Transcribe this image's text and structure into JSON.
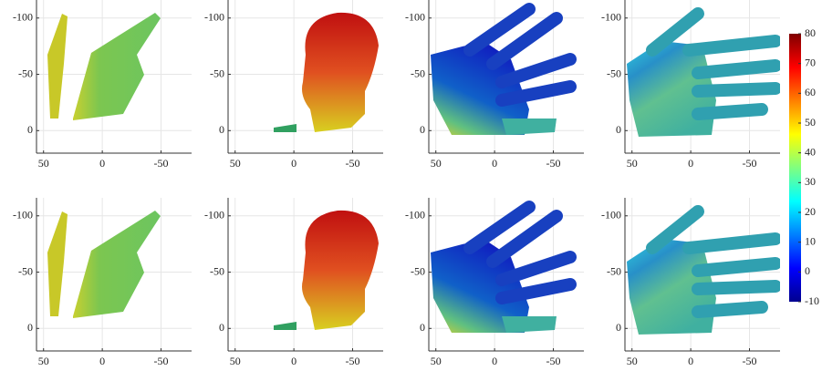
{
  "axes": {
    "xlim": [
      56,
      -76
    ],
    "ylim": [
      20,
      -116
    ],
    "xticks": [
      50,
      0,
      -50
    ],
    "yticks": [
      -100,
      -50,
      0
    ]
  },
  "colorbar": {
    "lim": [
      -10,
      80
    ],
    "ticks": [
      -10,
      0,
      10,
      20,
      30,
      40,
      50,
      60,
      70,
      80
    ]
  }
}
